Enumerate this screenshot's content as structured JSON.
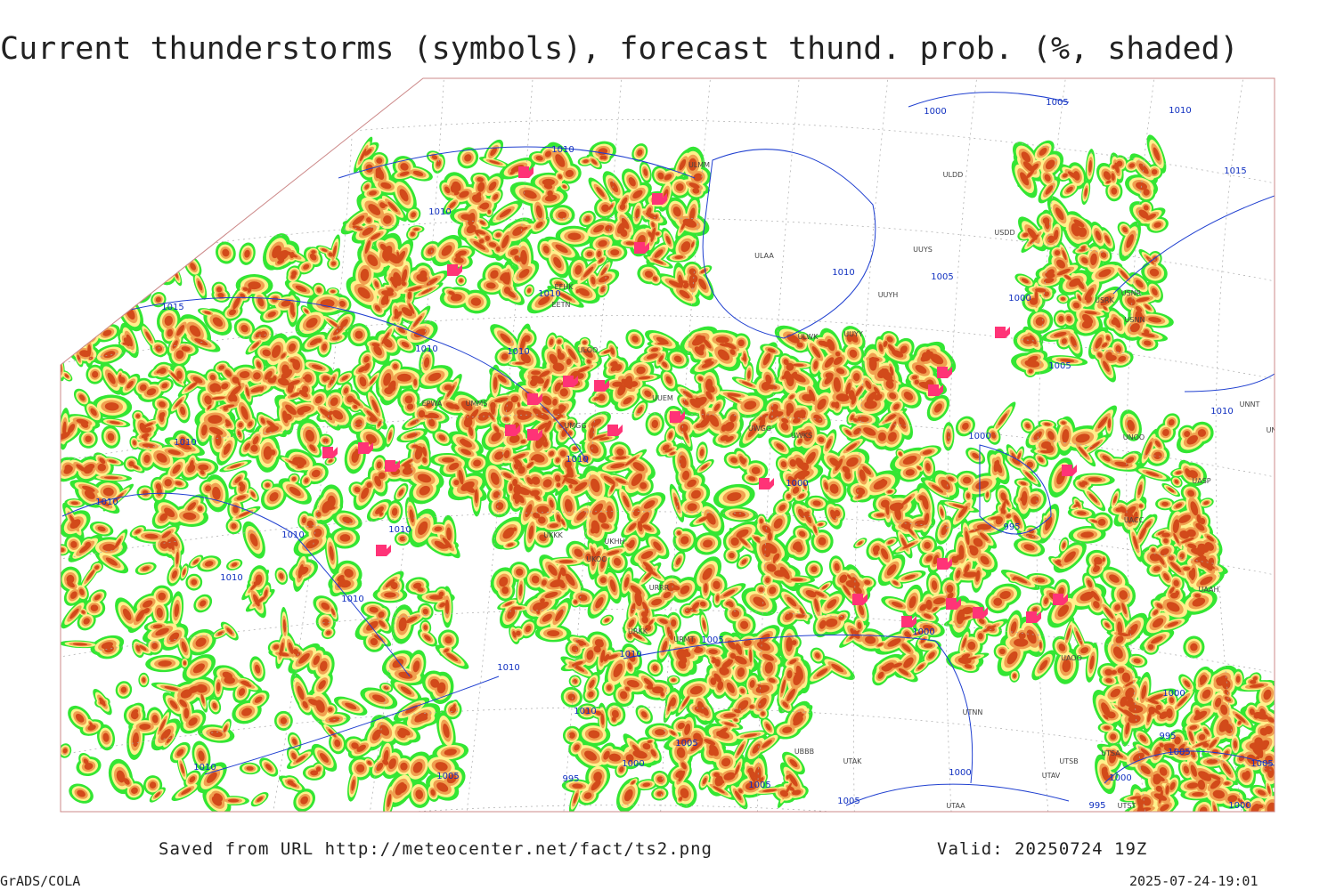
{
  "title": "Current thunderstorms (symbols), forecast thund. prob. (%, shaded)",
  "footer": {
    "source": "Saved from URL http://meteocenter.net/fact/ts2.png",
    "valid": "Valid: 20250724 19Z",
    "credit": "GrADS/COLA",
    "timestamp": "2025-07-24-19:01"
  },
  "map": {
    "isobar_labels": [
      "1000",
      "1005",
      "1010",
      "1010",
      "1010",
      "1015",
      "1010",
      "1005",
      "1015",
      "1010",
      "1000",
      "1010",
      "1010",
      "1005",
      "1010",
      "1010",
      "1000",
      "1010",
      "1000",
      "1010",
      "1010",
      "995",
      "1010",
      "1010",
      "1010",
      "1000",
      "1005",
      "1010",
      "1010",
      "1000",
      "1010",
      "995",
      "1005",
      "1005",
      "1000",
      "1005",
      "1010",
      "1005",
      "995",
      "1000",
      "1000",
      "1005",
      "1005",
      "995",
      "1000"
    ],
    "station_codes": [
      "ULMM",
      "ULDD",
      "USDD",
      "ULAA",
      "UUYS",
      "UUYH",
      "USNR",
      "USRK",
      "USNN",
      "UUYY",
      "ULWK",
      "EFHK",
      "EETN",
      "ULOO",
      "UUEM",
      "UWGG",
      "UWKS",
      "EPWA",
      "UMMS",
      "UMGG",
      "UNNT",
      "UNBB",
      "UNOO",
      "UASP",
      "UACC",
      "UAAH",
      "UAOO",
      "UTNN",
      "UTSA",
      "UTSB",
      "UTAV",
      "UTST",
      "UTAA",
      "UTAK",
      "UBBB",
      "URRR",
      "URMT",
      "URKK",
      "UKOO",
      "UKHH",
      "UKKK"
    ]
  }
}
